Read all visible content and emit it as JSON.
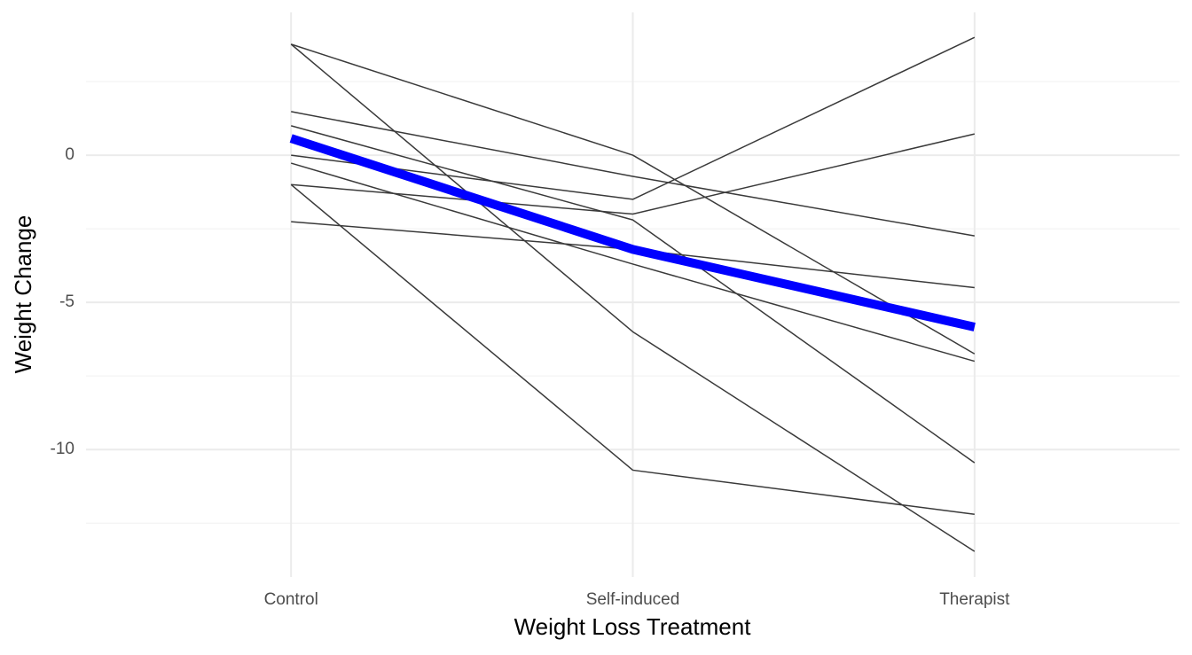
{
  "chart_data": {
    "type": "line",
    "x_label": "Weight Loss Treatment",
    "y_label": "Weight Change",
    "categories": [
      "Control",
      "Self-induced",
      "Therapist"
    ],
    "ylim": [
      -14.33,
      4.85
    ],
    "yticks": [
      -10,
      -5,
      0
    ],
    "grid": true,
    "series": [
      {
        "color": "#3a3a3a",
        "values": [
          3.77,
          0,
          -6.75
        ]
      },
      {
        "color": "#3a3a3a",
        "values": [
          3.77,
          -6.0,
          -13.46
        ]
      },
      {
        "color": "#3a3a3a",
        "values": [
          1.48,
          -0.72,
          -2.74
        ]
      },
      {
        "color": "#3a3a3a",
        "values": [
          1.0,
          -2.2,
          -10.45
        ]
      },
      {
        "color": "#3a3a3a",
        "values": [
          0,
          -1.5,
          4.0
        ]
      },
      {
        "color": "#3a3a3a",
        "values": [
          -0.27,
          -3.7,
          -7.0
        ]
      },
      {
        "color": "#3a3a3a",
        "values": [
          -1.0,
          -2.0,
          0.72
        ]
      },
      {
        "color": "#3a3a3a",
        "values": [
          -1.0,
          -10.7,
          -12.2
        ]
      },
      {
        "color": "#3a3a3a",
        "values": [
          -2.26,
          -3.2,
          -4.5
        ]
      },
      {
        "color": "#0000ff",
        "values": [
          0.57,
          -3.2,
          -5.84
        ],
        "width": 10
      }
    ]
  }
}
